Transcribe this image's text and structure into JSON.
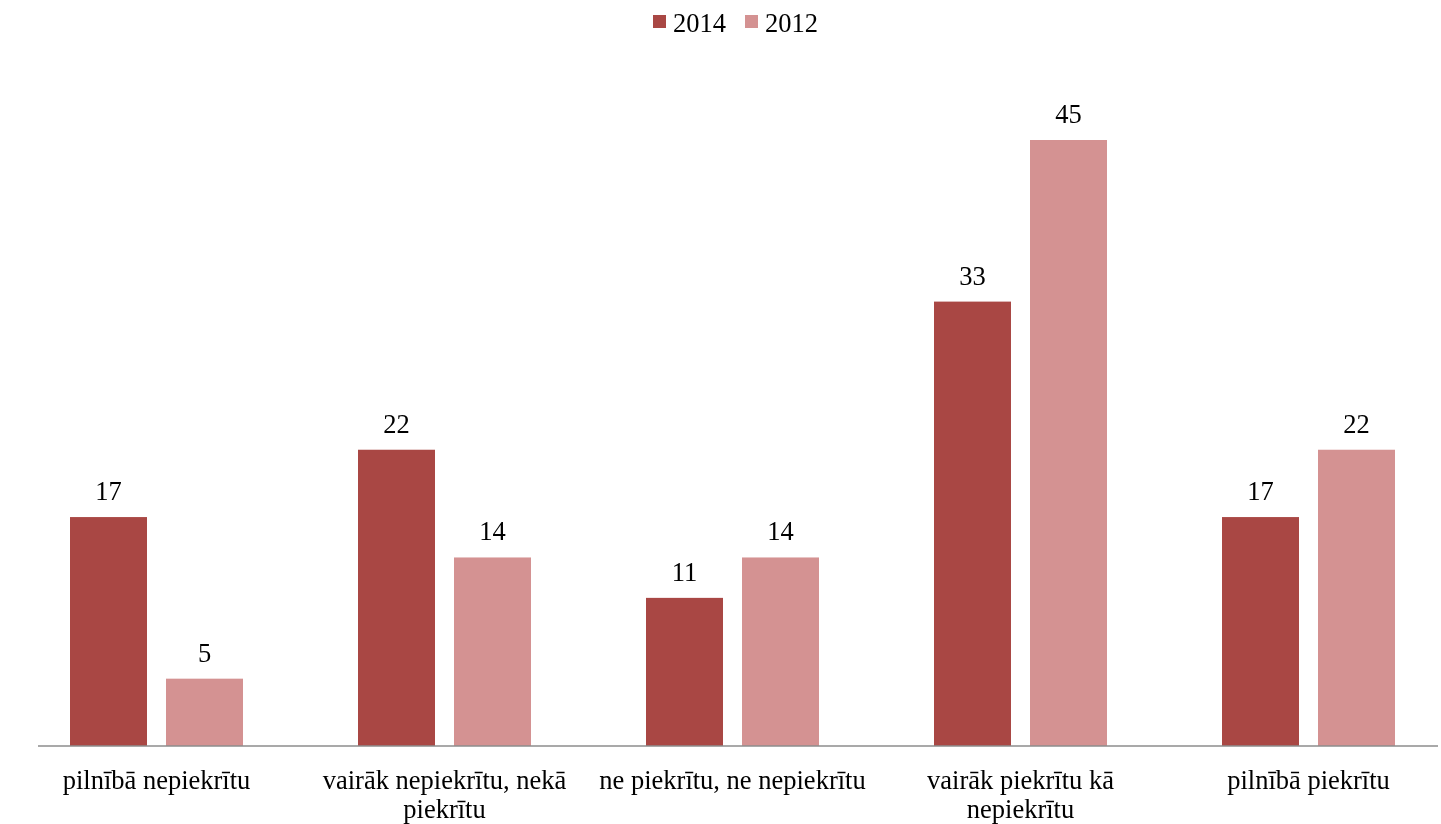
{
  "chart_data": {
    "type": "bar",
    "categories": [
      "pilnībā nepiekrītu",
      "vairāk nepiekrītu, nekā piekrītu",
      "ne piekrītu, ne nepiekrītu",
      "vairāk piekrītu kā nepiekrītu",
      "pilnībā piekrītu"
    ],
    "series": [
      {
        "name": "2014",
        "color": "#a94744",
        "values": [
          17,
          22,
          11,
          33,
          17
        ]
      },
      {
        "name": "2012",
        "color": "#d49292",
        "values": [
          5,
          14,
          14,
          45,
          22
        ]
      }
    ],
    "data_labels": true,
    "legend": "top",
    "tick_labels": "x"
  }
}
